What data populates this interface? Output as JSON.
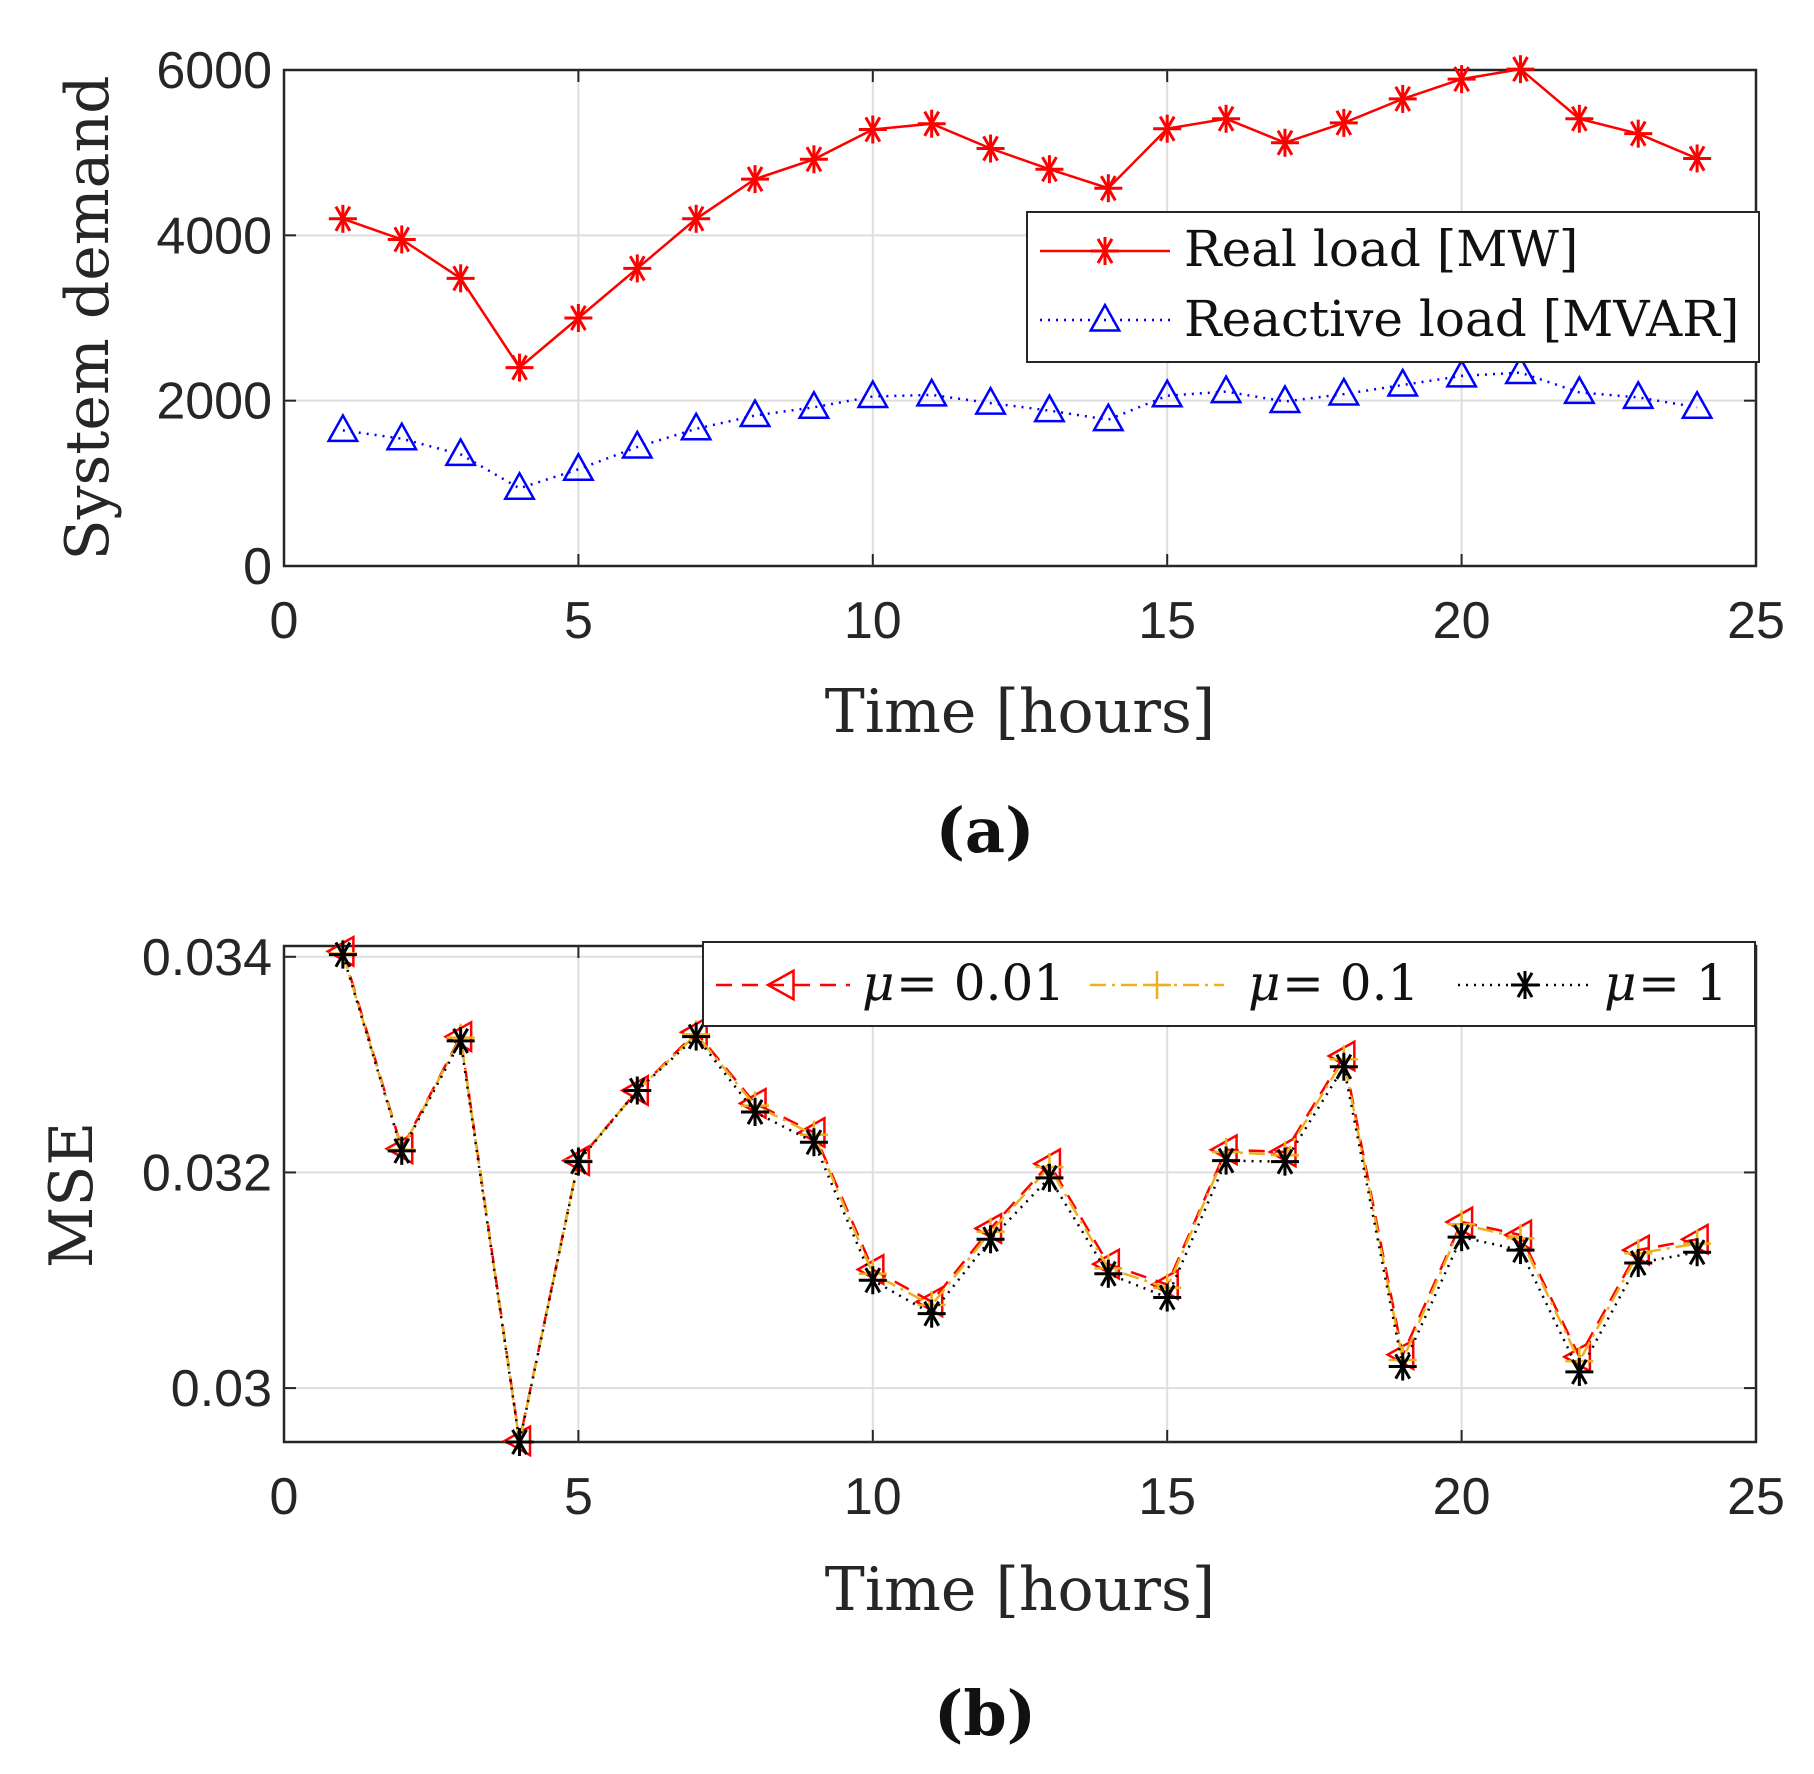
{
  "chart_data": [
    {
      "type": "line",
      "caption": "(a)",
      "xlabel": "Time [hours]",
      "ylabel": "System demand",
      "xlim": [
        0,
        25
      ],
      "ylim": [
        0,
        6000
      ],
      "xticks": [
        "0",
        "5",
        "10",
        "15",
        "20",
        "25"
      ],
      "yticks": [
        "0",
        "2000",
        "4000",
        "6000"
      ],
      "grid": true,
      "legend_position": "right",
      "x": [
        1,
        2,
        3,
        4,
        5,
        6,
        7,
        8,
        9,
        10,
        11,
        12,
        13,
        14,
        15,
        16,
        17,
        18,
        19,
        20,
        21,
        22,
        23,
        24
      ],
      "series": [
        {
          "name": "Real load [MW]",
          "color": "#ff0000",
          "marker": "asterisk",
          "line": "solid",
          "values": [
            4200,
            3950,
            3480,
            2400,
            3000,
            3600,
            4200,
            4680,
            4920,
            5280,
            5350,
            5050,
            4800,
            4570,
            5290,
            5410,
            5120,
            5360,
            5650,
            5890,
            6010,
            5410,
            5230,
            4930
          ]
        },
        {
          "name": "Reactive load [MVAR]",
          "color": "#0000ff",
          "marker": "triangle-up",
          "line": "dotted",
          "values": [
            1640,
            1540,
            1350,
            940,
            1170,
            1440,
            1660,
            1820,
            1920,
            2050,
            2070,
            1970,
            1880,
            1770,
            2060,
            2110,
            1990,
            2080,
            2190,
            2300,
            2340,
            2100,
            2040,
            1920
          ]
        }
      ]
    },
    {
      "type": "line",
      "caption": "(b)",
      "xlabel": "Time [hours]",
      "ylabel": "MSE",
      "xlim": [
        0,
        25
      ],
      "ylim": [
        0.0295,
        0.0341
      ],
      "xticks": [
        "0",
        "5",
        "10",
        "15",
        "20",
        "25"
      ],
      "yticks": [
        "0.03",
        "0.032",
        "0.034"
      ],
      "grid": true,
      "legend_position": "top",
      "x": [
        1,
        2,
        3,
        4,
        5,
        6,
        7,
        8,
        9,
        10,
        11,
        12,
        13,
        14,
        15,
        16,
        17,
        18,
        19,
        20,
        21,
        22,
        23,
        24
      ],
      "series": [
        {
          "name": "μ = 0.01",
          "mu_symbol": "μ",
          "mu_value": "= 0.01",
          "color": "#ff0000",
          "marker": "triangle-left",
          "line": "dashed",
          "values": [
            0.03405,
            0.03222,
            0.03326,
            0.02951,
            0.03211,
            0.03276,
            0.0333,
            0.03264,
            0.03237,
            0.0311,
            0.0308,
            0.03148,
            0.03208,
            0.03115,
            0.03096,
            0.03221,
            0.03219,
            0.03308,
            0.03031,
            0.03154,
            0.03142,
            0.03029,
            0.03128,
            0.03138
          ]
        },
        {
          "name": "μ = 0.1",
          "mu_symbol": "μ",
          "mu_value": "= 0.1",
          "color": "#edb120",
          "marker": "plus",
          "line": "dashdot",
          "values": [
            0.03403,
            0.03221,
            0.03325,
            0.0295,
            0.03211,
            0.03276,
            0.03328,
            0.03262,
            0.03235,
            0.03106,
            0.03077,
            0.03145,
            0.03205,
            0.03111,
            0.03093,
            0.03219,
            0.03216,
            0.03305,
            0.03026,
            0.03152,
            0.03139,
            0.03025,
            0.03125,
            0.03134
          ]
        },
        {
          "name": "μ = 1",
          "mu_symbol": "μ",
          "mu_value": "= 1",
          "color": "#000000",
          "marker": "asterisk",
          "line": "dotted",
          "values": [
            0.03402,
            0.0322,
            0.03322,
            0.0295,
            0.0321,
            0.03276,
            0.03326,
            0.03256,
            0.03228,
            0.031,
            0.03069,
            0.03138,
            0.03195,
            0.03106,
            0.03084,
            0.03211,
            0.0321,
            0.03298,
            0.0302,
            0.0314,
            0.03128,
            0.03015,
            0.03116,
            0.03126
          ]
        }
      ]
    }
  ]
}
